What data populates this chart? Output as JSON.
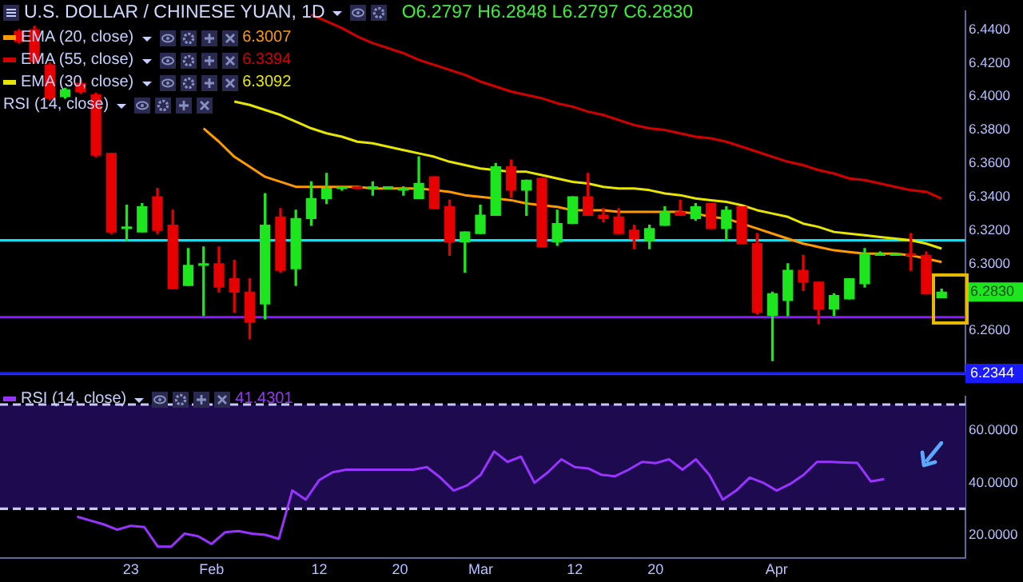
{
  "chart_data": [
    {
      "type": "candlestick",
      "title": "U.S. DOLLAR / CHINESE YUAN, 1D",
      "legend": "top left",
      "categories": [
        null,
        null,
        null,
        null,
        null,
        null,
        null,
        null,
        null,
        null,
        null,
        null,
        null,
        null,
        null,
        null,
        null,
        null,
        null,
        null,
        null,
        null,
        null,
        null,
        null,
        null,
        null,
        null,
        null,
        null,
        null,
        null,
        null,
        null,
        null,
        null,
        null,
        null,
        null,
        null,
        null,
        null,
        null,
        null,
        null,
        null,
        null,
        null,
        null,
        null,
        null,
        null,
        null,
        null,
        null,
        null,
        null,
        null,
        null,
        null,
        null
      ],
      "ohlc": [
        [
          6.439,
          6.44,
          6.432,
          6.433
        ],
        [
          6.44,
          6.442,
          6.42,
          6.421
        ],
        [
          6.419,
          6.42,
          6.398,
          6.399
        ],
        [
          6.4,
          6.405,
          6.399,
          6.404
        ],
        [
          6.408,
          6.41,
          6.402,
          6.403
        ],
        [
          6.401,
          6.402,
          6.364,
          6.365
        ],
        [
          6.366,
          6.366,
          6.318,
          6.319
        ],
        [
          6.321,
          6.335,
          6.314,
          6.322
        ],
        [
          6.319,
          6.336,
          6.319,
          6.334
        ],
        [
          6.34,
          6.345,
          6.318,
          6.32
        ],
        [
          6.323,
          6.332,
          6.285,
          6.285
        ],
        [
          6.287,
          6.309,
          6.287,
          6.299
        ],
        [
          6.299,
          6.31,
          6.269,
          6.3
        ],
        [
          6.3,
          6.31,
          6.283,
          6.286
        ],
        [
          6.291,
          6.302,
          6.271,
          6.283
        ],
        [
          6.283,
          6.291,
          6.255,
          6.265
        ],
        [
          6.276,
          6.342,
          6.267,
          6.323
        ],
        [
          6.328,
          6.333,
          6.295,
          6.296
        ],
        [
          6.297,
          6.332,
          6.287,
          6.327
        ],
        [
          6.327,
          6.349,
          6.323,
          6.339
        ],
        [
          6.339,
          6.354,
          6.336,
          6.345
        ],
        [
          6.345,
          6.346,
          6.344,
          6.345
        ],
        [
          6.346,
          6.346,
          6.345,
          6.345
        ],
        [
          6.345,
          6.349,
          6.341,
          6.345
        ],
        [
          6.345,
          6.345,
          6.345,
          6.345
        ],
        [
          6.344,
          6.346,
          6.341,
          6.344
        ],
        [
          6.339,
          6.364,
          6.339,
          6.348
        ],
        [
          6.352,
          6.352,
          6.333,
          6.333
        ],
        [
          6.334,
          6.338,
          6.305,
          6.313
        ],
        [
          6.313,
          6.319,
          6.295,
          6.319
        ],
        [
          6.318,
          6.335,
          6.318,
          6.329
        ],
        [
          6.329,
          6.36,
          6.329,
          6.358
        ],
        [
          6.358,
          6.362,
          6.34,
          6.344
        ],
        [
          6.344,
          6.35,
          6.329,
          6.35
        ],
        [
          6.351,
          6.351,
          6.31,
          6.31
        ],
        [
          6.313,
          6.332,
          6.311,
          6.324
        ],
        [
          6.324,
          6.34,
          6.324,
          6.34
        ],
        [
          6.34,
          6.354,
          6.329,
          6.329
        ],
        [
          6.329,
          6.333,
          6.325,
          6.327
        ],
        [
          6.328,
          6.333,
          6.318,
          6.318
        ],
        [
          6.32,
          6.323,
          6.309,
          6.315
        ],
        [
          6.314,
          6.323,
          6.309,
          6.321
        ],
        [
          6.323,
          6.334,
          6.323,
          6.331
        ],
        [
          6.331,
          6.338,
          6.329,
          6.329
        ],
        [
          6.327,
          6.336,
          6.326,
          6.334
        ],
        [
          6.336,
          6.336,
          6.321,
          6.321
        ],
        [
          6.321,
          6.334,
          6.314,
          6.332
        ],
        [
          6.334,
          6.334,
          6.312,
          6.312
        ],
        [
          6.312,
          6.318,
          6.27,
          6.271
        ],
        [
          6.269,
          6.283,
          6.242,
          6.282
        ],
        [
          6.278,
          6.3,
          6.269,
          6.296
        ],
        [
          6.296,
          6.305,
          6.284,
          6.289
        ],
        [
          6.289,
          6.289,
          6.264,
          6.273
        ],
        [
          6.273,
          6.282,
          6.269,
          6.281
        ],
        [
          6.279,
          6.291,
          6.279,
          6.291
        ],
        [
          6.288,
          6.309,
          6.286,
          6.306
        ],
        [
          6.305,
          6.307,
          6.305,
          6.306
        ],
        [
          6.305,
          6.306,
          6.305,
          6.306
        ],
        [
          6.306,
          6.318,
          6.296,
          6.305
        ],
        [
          6.305,
          6.307,
          6.282,
          6.282
        ],
        [
          6.2797,
          6.2848,
          6.2797,
          6.283
        ]
      ],
      "colors": [
        "#e60000",
        "#e60000",
        "#e60000",
        "#1ee61e",
        "#e60000",
        "#e60000",
        "#e60000",
        "#1ee61e",
        "#1ee61e",
        "#e60000",
        "#e60000",
        "#1ee61e",
        "#1ee61e",
        "#e60000",
        "#e60000",
        "#e60000",
        "#1ee61e",
        "#e60000",
        "#1ee61e",
        "#1ee61e",
        "#1ee61e",
        "#1ee61e",
        "#e60000",
        "#1ee61e",
        "#1ee61e",
        "#1ee61e",
        "#1ee61e",
        "#e60000",
        "#e60000",
        "#1ee61e",
        "#1ee61e",
        "#1ee61e",
        "#e60000",
        "#1ee61e",
        "#e60000",
        "#1ee61e",
        "#1ee61e",
        "#e60000",
        "#e60000",
        "#e60000",
        "#e60000",
        "#1ee61e",
        "#1ee61e",
        "#e60000",
        "#1ee61e",
        "#e60000",
        "#1ee61e",
        "#e60000",
        "#e60000",
        "#1ee61e",
        "#1ee61e",
        "#e60000",
        "#e60000",
        "#1ee61e",
        "#1ee61e",
        "#1ee61e",
        "#1ee61e",
        "#1ee61e",
        "#e60000",
        "#e60000",
        "#1ee61e"
      ],
      "series": [
        {
          "type": "line",
          "name": "EMA (20, close)",
          "color": "#ff9900",
          "values": [
            null,
            null,
            null,
            null,
            null,
            null,
            null,
            null,
            null,
            null,
            null,
            null,
            6.381,
            6.373,
            6.364,
            6.358,
            6.352,
            6.349,
            6.346,
            6.346,
            6.346,
            6.346,
            6.346,
            6.345,
            6.345,
            6.345,
            6.345,
            6.344,
            6.343,
            6.341,
            6.34,
            6.339,
            6.338,
            6.336,
            6.335,
            6.334,
            6.332,
            6.332,
            6.332,
            6.331,
            6.331,
            6.331,
            6.331,
            6.331,
            6.33,
            6.328,
            6.327,
            6.324,
            6.321,
            6.318,
            6.315,
            6.312,
            6.31,
            6.308,
            6.307,
            6.306,
            6.306,
            6.306,
            6.305,
            6.303,
            6.301
          ]
        },
        {
          "type": "line",
          "name": "EMA (55, close)",
          "color": "#d40000",
          "values": [
            null,
            null,
            null,
            null,
            null,
            null,
            null,
            null,
            null,
            null,
            null,
            null,
            null,
            null,
            null,
            null,
            null,
            null,
            null,
            6.449,
            6.445,
            6.441,
            6.436,
            6.432,
            6.429,
            6.426,
            6.422,
            6.419,
            6.416,
            6.413,
            6.409,
            6.406,
            6.403,
            6.401,
            6.399,
            6.396,
            6.394,
            6.391,
            6.389,
            6.386,
            6.383,
            6.381,
            6.38,
            6.378,
            6.376,
            6.375,
            6.373,
            6.37,
            6.367,
            6.364,
            6.361,
            6.359,
            6.356,
            6.354,
            6.351,
            6.35,
            6.348,
            6.346,
            6.344,
            6.343,
            6.339
          ]
        },
        {
          "type": "line",
          "name": "EMA (30, close)",
          "color": "#e6e600",
          "values": [
            null,
            null,
            null,
            null,
            null,
            null,
            null,
            null,
            null,
            null,
            null,
            null,
            null,
            null,
            6.397,
            6.395,
            6.392,
            6.389,
            6.385,
            6.381,
            6.378,
            6.376,
            6.373,
            6.372,
            6.37,
            6.368,
            6.366,
            6.364,
            6.361,
            6.359,
            6.357,
            6.356,
            6.355,
            6.355,
            6.353,
            6.351,
            6.349,
            6.348,
            6.346,
            6.345,
            6.345,
            6.344,
            6.342,
            6.341,
            6.339,
            6.338,
            6.337,
            6.335,
            6.332,
            6.33,
            6.328,
            6.324,
            6.322,
            6.319,
            6.318,
            6.317,
            6.316,
            6.315,
            6.314,
            6.312,
            6.309
          ]
        }
      ],
      "ylim": [
        6.234,
        6.451
      ],
      "yticks": [
        {
          "value": 6.26,
          "label": "6.2600"
        },
        {
          "value": 6.3,
          "label": "6.3000"
        },
        {
          "value": 6.32,
          "label": "6.3200"
        },
        {
          "value": 6.34,
          "label": "6.3400"
        },
        {
          "value": 6.36,
          "label": "6.3600"
        },
        {
          "value": 6.38,
          "label": "6.3800"
        },
        {
          "value": 6.4,
          "label": "6.4000"
        },
        {
          "value": 6.42,
          "label": "6.4200"
        },
        {
          "value": 6.44,
          "label": "6.4400"
        }
      ],
      "ref_lines": [
        {
          "axis": "y",
          "value": 6.314,
          "color": "#00e5ff"
        },
        {
          "axis": "y",
          "value": 6.268,
          "color": "#8c1aff"
        },
        {
          "axis": "y",
          "value": 6.2344,
          "label": "6.2344",
          "color": "#1a1aff"
        }
      ],
      "annotations": [
        "O6.2797 H6.2848 L6.2797 C6.2830",
        "6.3007",
        "6.3394",
        "6.3092",
        "RSI (14, close)",
        "6.2830"
      ]
    },
    {
      "type": "line",
      "legend": "top left",
      "categories": [
        null,
        null,
        null,
        null,
        "23",
        null,
        null,
        null,
        null,
        null,
        "Feb",
        null,
        null,
        null,
        null,
        null,
        null,
        null,
        "12",
        null,
        null,
        null,
        null,
        null,
        "20",
        null,
        null,
        null,
        null,
        null,
        "Mar",
        null,
        null,
        null,
        null,
        null,
        null,
        "12",
        null,
        null,
        null,
        null,
        null,
        "20",
        null,
        null,
        null,
        null,
        null,
        null,
        null,
        null,
        "Apr",
        null,
        null,
        null,
        null,
        null,
        null,
        null,
        null
      ],
      "series": [
        {
          "name": "RSI (14, close)",
          "color": "#9933ff",
          "values": [
            27,
            25.5,
            24,
            22,
            23.5,
            23,
            15.5,
            15.5,
            20.5,
            19.5,
            16.5,
            21,
            21.5,
            20.5,
            20,
            18.5,
            37,
            33.5,
            41,
            44,
            45,
            45,
            45,
            45,
            45,
            45,
            46,
            42,
            37,
            39,
            43,
            52,
            48,
            50,
            40,
            44,
            49,
            46,
            45.5,
            43,
            42.5,
            45,
            48,
            47.5,
            49,
            45,
            49,
            43,
            33.5,
            37,
            42,
            40,
            37,
            39.5,
            43,
            48,
            48,
            47.8,
            47.6,
            40.5,
            41.4
          ]
        }
      ],
      "annotations": [
        "41.4301"
      ],
      "ylim": [
        11,
        73
      ],
      "yticks": [
        {
          "value": 20,
          "label": "20.0000"
        },
        {
          "value": 40,
          "label": "40.0000"
        },
        {
          "value": 60,
          "label": "60.0000"
        }
      ],
      "bands": [
        {
          "axis": "y",
          "from": 30,
          "to": 70,
          "color": "#1e0a4e"
        }
      ],
      "ref_lines": [
        {
          "axis": "y",
          "value": 70,
          "color": "#c8c8ff",
          "line_style": "dashed"
        },
        {
          "axis": "y",
          "value": 30,
          "color": "#c8c8ff",
          "line_style": "dashed"
        }
      ]
    }
  ]
}
